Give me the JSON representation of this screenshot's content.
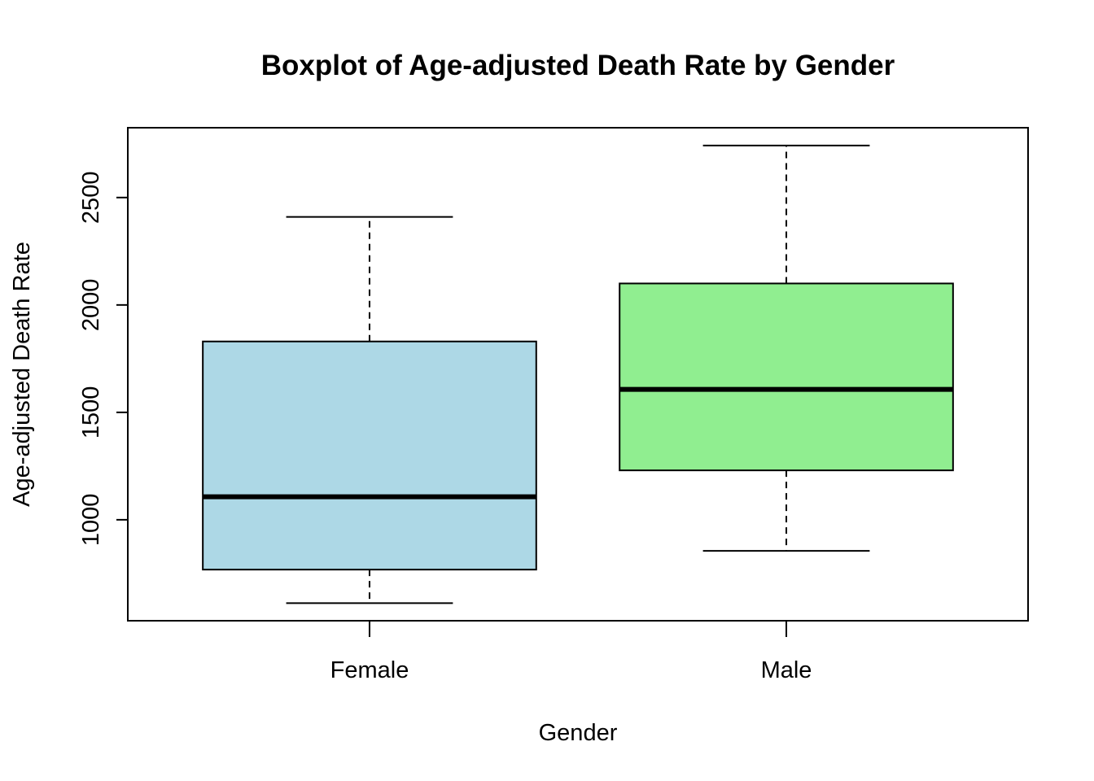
{
  "chart_data": {
    "type": "boxplot",
    "title": "Boxplot of Age-adjusted Death Rate by Gender",
    "xlabel": "Gender",
    "ylabel": "Age-adjusted Death Rate",
    "categories": [
      "Female",
      "Male"
    ],
    "boxes": [
      {
        "category": "Female",
        "whisker_low": 612,
        "q1": 768,
        "median": 1107,
        "q3": 1830,
        "whisker_high": 2410,
        "fill": "#add8e6"
      },
      {
        "category": "Male",
        "whisker_low": 855,
        "q1": 1230,
        "median": 1607,
        "q3": 2100,
        "whisker_high": 2742,
        "fill": "#90ee90"
      }
    ],
    "y_ticks": [
      1000,
      1500,
      2000,
      2500
    ],
    "y_tick_labels": [
      "1000",
      "1500",
      "2000",
      "2500"
    ],
    "ylim": [
      530,
      2825
    ],
    "grid": false,
    "legend": "none"
  },
  "colors": {
    "female_box": "#add8e6",
    "male_box": "#90ee90",
    "line": "#000000"
  }
}
